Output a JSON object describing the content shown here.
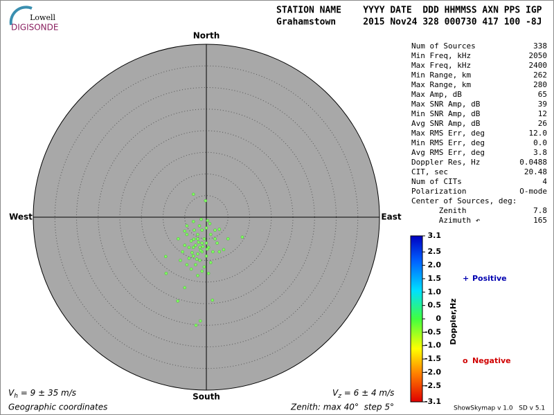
{
  "logo": {
    "top": "Lowell",
    "bottom": "DIGISONDE"
  },
  "header": {
    "line1": "STATION NAME    YYYY DATE  DDD HHMMSS AXN PPS IGP",
    "line2": "Grahamstown     2015 Nov24 328 000730 417 100 -8J"
  },
  "stats": [
    [
      "Num of Sources",
      "338"
    ],
    [
      "Min Freq, kHz",
      "2050"
    ],
    [
      "Max Freq, kHz",
      "2400"
    ],
    [
      "Min Range, km",
      "262"
    ],
    [
      "Max Range, km",
      "280"
    ],
    [
      "Max Amp, dB",
      "65"
    ],
    [
      "Max SNR Amp, dB",
      "39"
    ],
    [
      "Min SNR Amp, dB",
      "12"
    ],
    [
      "Avg SNR Amp, dB",
      "26"
    ],
    [
      "Max RMS Err, deg",
      "12.0"
    ],
    [
      "Min RMS Err, deg",
      "0.0"
    ],
    [
      "Avg RMS Err, deg",
      "3.8"
    ],
    [
      "Doppler Res, Hz",
      "0.0488"
    ],
    [
      "CIT, sec",
      "20.48"
    ],
    [
      "Num of CITs",
      "4"
    ],
    [
      "Polarization",
      "O-mode"
    ],
    [
      "Center of Sources, deg:",
      ""
    ],
    [
      "      Zenith",
      "7.8"
    ],
    [
      "      Azimuth ↶",
      "165"
    ]
  ],
  "skymap": {
    "directions": {
      "north": "North",
      "south": "South",
      "east": "East",
      "west": "West"
    },
    "rlim": [
      0,
      40
    ],
    "rings": [
      5,
      10,
      15,
      20,
      25,
      30,
      35
    ],
    "point_color": "#80ff60",
    "points": [
      [
        -2,
        -5
      ],
      [
        -1,
        -6
      ],
      [
        -1.5,
        -7
      ],
      [
        -2.5,
        -6.5
      ],
      [
        0,
        -6
      ],
      [
        -3,
        -7
      ],
      [
        -1,
        -8
      ],
      [
        -2,
        -8.5
      ],
      [
        -0.5,
        -5
      ],
      [
        0.5,
        -7
      ],
      [
        -3.5,
        -5.5
      ],
      [
        -4,
        -7
      ],
      [
        -2,
        -4
      ],
      [
        -1,
        -3
      ],
      [
        0,
        -2.5
      ],
      [
        0.8,
        -1.5
      ],
      [
        -1.6,
        -2
      ],
      [
        -2.8,
        -3
      ],
      [
        1,
        -4
      ],
      [
        2,
        -5
      ],
      [
        -4.5,
        -4
      ],
      [
        -5,
        -6.5
      ],
      [
        -3,
        -9
      ],
      [
        -1.5,
        -10
      ],
      [
        0,
        -9
      ],
      [
        -4,
        -9.5
      ],
      [
        -2.5,
        -11
      ],
      [
        -0.5,
        -11.5
      ],
      [
        1.5,
        -8
      ],
      [
        2.5,
        -6
      ],
      [
        3,
        -8
      ],
      [
        4,
        -7.5
      ],
      [
        -5.5,
        -8
      ],
      [
        -6,
        -10
      ],
      [
        -3.5,
        -12
      ],
      [
        -1,
        -12.5
      ],
      [
        1,
        -10.5
      ],
      [
        -2,
        -13.5
      ],
      [
        -4.5,
        -11
      ],
      [
        0.5,
        -13
      ],
      [
        -3,
        -1
      ],
      [
        -4.5,
        -2
      ],
      [
        2,
        -3
      ],
      [
        3,
        -2.8
      ],
      [
        -1.2,
        -0.5
      ],
      [
        0.3,
        -0.8
      ],
      [
        -5,
        -3.2
      ],
      [
        5,
        -5
      ],
      [
        -6.5,
        -5
      ],
      [
        -2.2,
        -9.7
      ],
      [
        -1.8,
        -5.8
      ],
      [
        -0.8,
        -6.8
      ],
      [
        -2.9,
        -5.1
      ],
      [
        -1.3,
        -7.7
      ],
      [
        0.2,
        -7.4
      ],
      [
        -3.3,
        -8.2
      ],
      [
        -3,
        5.3
      ],
      [
        -0.2,
        3.8
      ],
      [
        8.3,
        -4.6
      ],
      [
        -9.4,
        -9.1
      ],
      [
        -9.3,
        -13
      ],
      [
        -5,
        -16.3
      ],
      [
        -6.6,
        -19.4
      ],
      [
        1.4,
        -19.2
      ],
      [
        -1.4,
        -24
      ],
      [
        -2.4,
        -25
      ]
    ]
  },
  "colorbar": {
    "label": "Doppler,Hz",
    "lim": [
      -3.1,
      3.1
    ],
    "ticks": [
      3.1,
      2.5,
      {
        "value": 2,
        "label": "2.0"
      },
      1.5,
      {
        "value": 1,
        "label": "1.0"
      },
      0.5,
      0,
      -0.5,
      {
        "value": -1,
        "label": "-1.0"
      },
      -1.5,
      {
        "value": -2,
        "label": "-2.0"
      },
      -2.5,
      -3.1
    ]
  },
  "legend": {
    "positive_symbol": "+",
    "positive": "Positive",
    "negative_symbol": "o",
    "negative": "Negative"
  },
  "footer": {
    "vh_main": "V",
    "vh_sub": "h",
    "vh_rest": " = 9 ± 35 m/s",
    "vz_main": "V",
    "vz_sub": "z",
    "vz_rest": " = 6 ± 4 m/s",
    "coords": "Geographic coordinates",
    "zenith": "Zenith: max 40°  step 5°",
    "version": "ShowSkymap v 1.0   SD v 5.1"
  }
}
